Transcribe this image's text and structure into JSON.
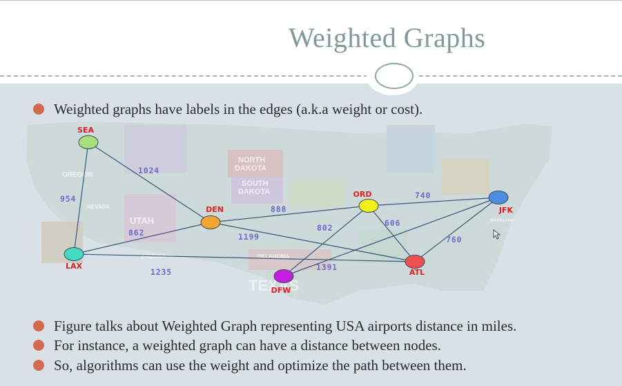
{
  "slide": {
    "title": "Weighted Graphs",
    "bullets": [
      "Weighted graphs have labels in the edges (a.k.a weight or cost).",
      "Figure talks about Weighted Graph representing USA airports distance in miles.",
      "For instance, a weighted graph can have a distance between nodes.",
      "So, algorithms can use the weight and optimize the path between them."
    ]
  },
  "colors": {
    "title": "#7f9a97",
    "bullet_dot": "#d46a50",
    "node_label": "#e02020",
    "weight_label": "#6a6acc",
    "edge": "#35557a"
  },
  "map_labels": {
    "north_dakota": [
      "NORTH",
      "DAKOTA"
    ],
    "south_dakota": [
      "SOUTH",
      "DAKOTA"
    ],
    "utah": "UTAH",
    "nevada": "NEVADA",
    "texas": "TEXAS",
    "oklahoma": "OKLAHOMA",
    "arizona": "ARIZONA",
    "oregon": "OREGON",
    "maryland": "MARYLAND"
  },
  "graph": {
    "nodes": [
      {
        "id": "SEA",
        "label": "SEA",
        "color": "#a7e07a"
      },
      {
        "id": "LAX",
        "label": "LAX",
        "color": "#44d9c2"
      },
      {
        "id": "DEN",
        "label": "DEN",
        "color": "#f4a430"
      },
      {
        "id": "DFW",
        "label": "DFW",
        "color": "#c61ee0"
      },
      {
        "id": "ORD",
        "label": "ORD",
        "color": "#f2ef1a"
      },
      {
        "id": "ATL",
        "label": "ATL",
        "color": "#ee4f4f"
      },
      {
        "id": "JFK",
        "label": "JFK",
        "color": "#4d8de0"
      }
    ],
    "edges": [
      {
        "from": "SEA",
        "to": "LAX",
        "weight": "954"
      },
      {
        "from": "SEA",
        "to": "DEN",
        "weight": "1024"
      },
      {
        "from": "DEN",
        "to": "LAX",
        "weight": "862"
      },
      {
        "from": "LAX",
        "to": "ATL",
        "weight": "1235"
      },
      {
        "from": "DEN",
        "to": "ORD",
        "weight": "888"
      },
      {
        "from": "DEN",
        "to": "ATL",
        "weight": "1199"
      },
      {
        "from": "ORD",
        "to": "DFW",
        "weight": "802"
      },
      {
        "from": "ORD",
        "to": "ATL",
        "weight": "606"
      },
      {
        "from": "ORD",
        "to": "JFK",
        "weight": "740"
      },
      {
        "from": "JFK",
        "to": "DFW",
        "weight": "1391"
      },
      {
        "from": "JFK",
        "to": "ATL",
        "weight": "760"
      }
    ]
  }
}
